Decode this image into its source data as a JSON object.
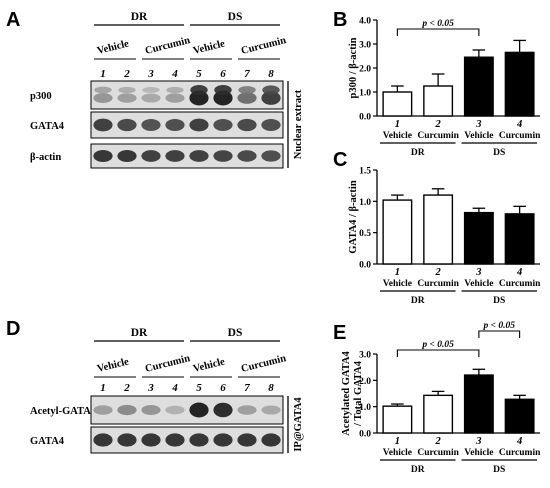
{
  "panels": {
    "A": {
      "label": "A",
      "groups": [
        "DR",
        "DS"
      ],
      "treatments": [
        "Vehicle",
        "Curcumin",
        "Vehicle",
        "Curcumin"
      ],
      "lanes": [
        "1",
        "2",
        "3",
        "4",
        "5",
        "6",
        "7",
        "8"
      ],
      "rows": [
        {
          "label": "p300",
          "intensity": [
            0.35,
            0.3,
            0.25,
            0.3,
            0.95,
            0.95,
            0.55,
            0.8
          ],
          "double": true
        },
        {
          "label": "GATA4",
          "intensity": [
            0.8,
            0.75,
            0.7,
            0.72,
            0.8,
            0.72,
            0.75,
            0.72
          ],
          "double": false
        },
        {
          "label": "β-actin",
          "intensity": [
            0.85,
            0.85,
            0.8,
            0.8,
            0.8,
            0.78,
            0.75,
            0.72
          ],
          "double": false
        }
      ],
      "side_label": "Nuclear extract"
    },
    "D": {
      "label": "D",
      "groups": [
        "DR",
        "DS"
      ],
      "treatments": [
        "Vehicle",
        "Curcumin",
        "Vehicle",
        "Curcumin"
      ],
      "lanes": [
        "1",
        "2",
        "3",
        "4",
        "5",
        "6",
        "7",
        "8"
      ],
      "rows": [
        {
          "label": "Acetyl-GATA4",
          "intensity": [
            0.3,
            0.4,
            0.35,
            0.2,
            0.95,
            0.9,
            0.3,
            0.25
          ],
          "double": false
        },
        {
          "label": "GATA4",
          "intensity": [
            0.85,
            0.85,
            0.85,
            0.85,
            0.85,
            0.85,
            0.85,
            0.85
          ],
          "double": false
        }
      ],
      "side_label": "IP@GATA4"
    }
  },
  "chart_data": [
    {
      "panel": "B",
      "type": "bar",
      "categories": [
        "1",
        "2",
        "3",
        "4"
      ],
      "category_labels": [
        "Vehicle",
        "Curcumin",
        "Vehicle",
        "Curcumin"
      ],
      "groups": [
        {
          "name": "DR",
          "categories": [
            "1",
            "2"
          ]
        },
        {
          "name": "DS",
          "categories": [
            "3",
            "4"
          ]
        }
      ],
      "values": [
        1.0,
        1.25,
        2.45,
        2.65
      ],
      "errors": [
        0.25,
        0.5,
        0.3,
        0.5
      ],
      "fills": [
        "#ffffff",
        "#ffffff",
        "#000000",
        "#000000"
      ],
      "ylabel": "p300 / β-actin",
      "ylim": [
        0,
        4
      ],
      "yticks": [
        "0.0",
        "1.0",
        "2.0",
        "3.0",
        "4.0"
      ],
      "significance": [
        {
          "from": "1",
          "to": "3",
          "text": "p < 0.05"
        }
      ]
    },
    {
      "panel": "C",
      "type": "bar",
      "categories": [
        "1",
        "2",
        "3",
        "4"
      ],
      "category_labels": [
        "Vehicle",
        "Curcumin",
        "Vehicle",
        "Curcumin"
      ],
      "groups": [
        {
          "name": "DR",
          "categories": [
            "1",
            "2"
          ]
        },
        {
          "name": "DS",
          "categories": [
            "3",
            "4"
          ]
        }
      ],
      "values": [
        1.02,
        1.1,
        0.82,
        0.8
      ],
      "errors": [
        0.08,
        0.1,
        0.07,
        0.12
      ],
      "fills": [
        "#ffffff",
        "#ffffff",
        "#000000",
        "#000000"
      ],
      "ylabel": "GATA4 / β-actin",
      "ylim": [
        0,
        1.5
      ],
      "yticks": [
        "0.0",
        "0.5",
        "1.0",
        "1.5"
      ],
      "significance": []
    },
    {
      "panel": "E",
      "type": "bar",
      "categories": [
        "1",
        "2",
        "3",
        "4"
      ],
      "category_labels": [
        "Vehicle",
        "Curcumin",
        "Vehicle",
        "Curcumin"
      ],
      "groups": [
        {
          "name": "DR",
          "categories": [
            "1",
            "2"
          ]
        },
        {
          "name": "DS",
          "categories": [
            "3",
            "4"
          ]
        }
      ],
      "values": [
        1.02,
        1.43,
        2.2,
        1.28
      ],
      "errors": [
        0.08,
        0.15,
        0.22,
        0.15
      ],
      "fills": [
        "#ffffff",
        "#ffffff",
        "#000000",
        "#000000"
      ],
      "ylabel": [
        "Acetylated GATA4",
        "/ Total GATA4"
      ],
      "ylim": [
        0,
        3
      ],
      "yticks": [
        "0.0",
        "1.0",
        "2.0",
        "3.0"
      ],
      "significance": [
        {
          "from": "1",
          "to": "3",
          "text": "p < 0.05"
        },
        {
          "from": "3",
          "to": "4",
          "text": "p < 0.05"
        }
      ]
    }
  ]
}
